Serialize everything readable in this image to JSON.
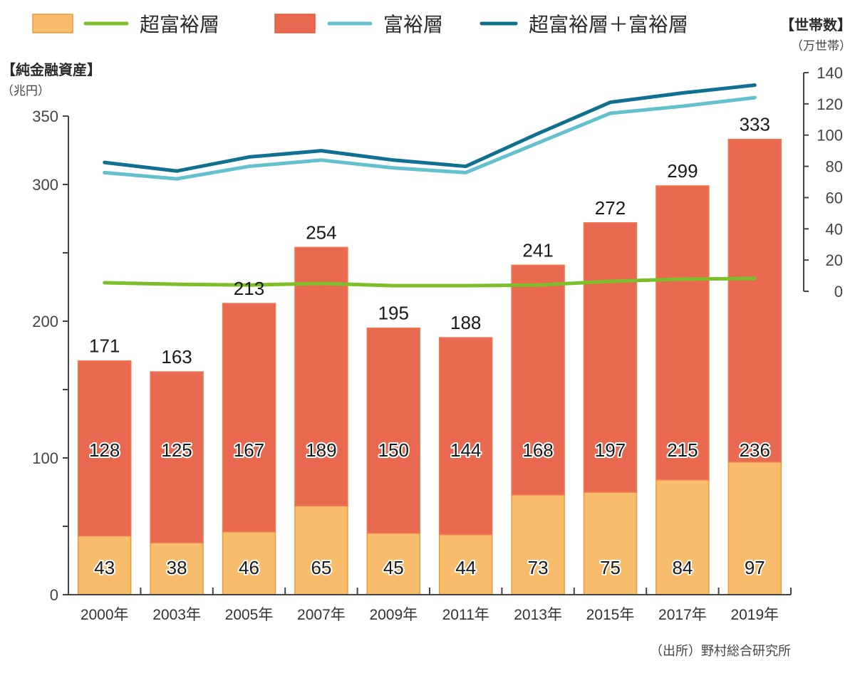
{
  "legend": {
    "items": [
      {
        "label": "超富裕層",
        "bar_color": "#f7bd6c",
        "line_color": "#7cbf2a"
      },
      {
        "label": "富裕層",
        "bar_color": "#e8694f",
        "line_color": "#63c0cf"
      },
      {
        "label": "超富裕層＋富裕層",
        "line_color": "#10708f"
      }
    ]
  },
  "left_axis": {
    "title": "【純金融資産】",
    "unit": "（兆円）"
  },
  "right_axis": {
    "title": "【世帯数】",
    "unit": "（万世帯）"
  },
  "source": "（出所）野村総合研究所",
  "chart_data": {
    "type": "bar",
    "title": "",
    "categories": [
      "2000年",
      "2003年",
      "2005年",
      "2007年",
      "2009年",
      "2011年",
      "2013年",
      "2015年",
      "2017年",
      "2019年"
    ],
    "bar_series": [
      {
        "name": "超富裕層",
        "axis": "left",
        "color": "#f7bd6c",
        "values": [
          43,
          38,
          46,
          65,
          45,
          44,
          73,
          75,
          84,
          97
        ]
      },
      {
        "name": "富裕層",
        "axis": "left",
        "color": "#e8694f",
        "values": [
          128,
          125,
          167,
          189,
          150,
          144,
          168,
          197,
          215,
          236
        ]
      }
    ],
    "totals": [
      171,
      163,
      213,
      254,
      195,
      188,
      241,
      272,
      299,
      333
    ],
    "line_series": [
      {
        "name": "超富裕層",
        "axis": "right",
        "color": "#7cbf2a",
        "values": [
          5.5,
          4.5,
          4,
          5,
          3.6,
          3.6,
          4,
          6.4,
          7.8,
          8.2
        ]
      },
      {
        "name": "富裕層",
        "axis": "right",
        "color": "#63c0cf",
        "values": [
          76,
          72,
          80,
          84,
          79,
          76,
          95,
          114,
          118.5,
          124
        ]
      },
      {
        "name": "超富裕層＋富裕層",
        "axis": "right",
        "color": "#10708f",
        "values": [
          82.5,
          77,
          86,
          90,
          84,
          80,
          101,
          121,
          127,
          132
        ]
      }
    ],
    "ylabel": "純金融資産（兆円）",
    "ylim": [
      0,
      350
    ],
    "yticks": [
      0,
      50,
      100,
      150,
      200,
      250,
      300,
      350
    ],
    "ytick_labels": [
      "0",
      "",
      "100",
      "",
      "200",
      "",
      "300",
      "350"
    ],
    "y2label": "世帯数（万世帯）",
    "y2lim": [
      0,
      140
    ],
    "y2ticks": [
      0,
      20,
      40,
      60,
      80,
      100,
      120,
      140
    ],
    "y2tick_labels": [
      "0",
      "20",
      "40",
      "60",
      "80",
      "100",
      "120",
      "140"
    ],
    "legend_position": "top",
    "grid": false
  }
}
